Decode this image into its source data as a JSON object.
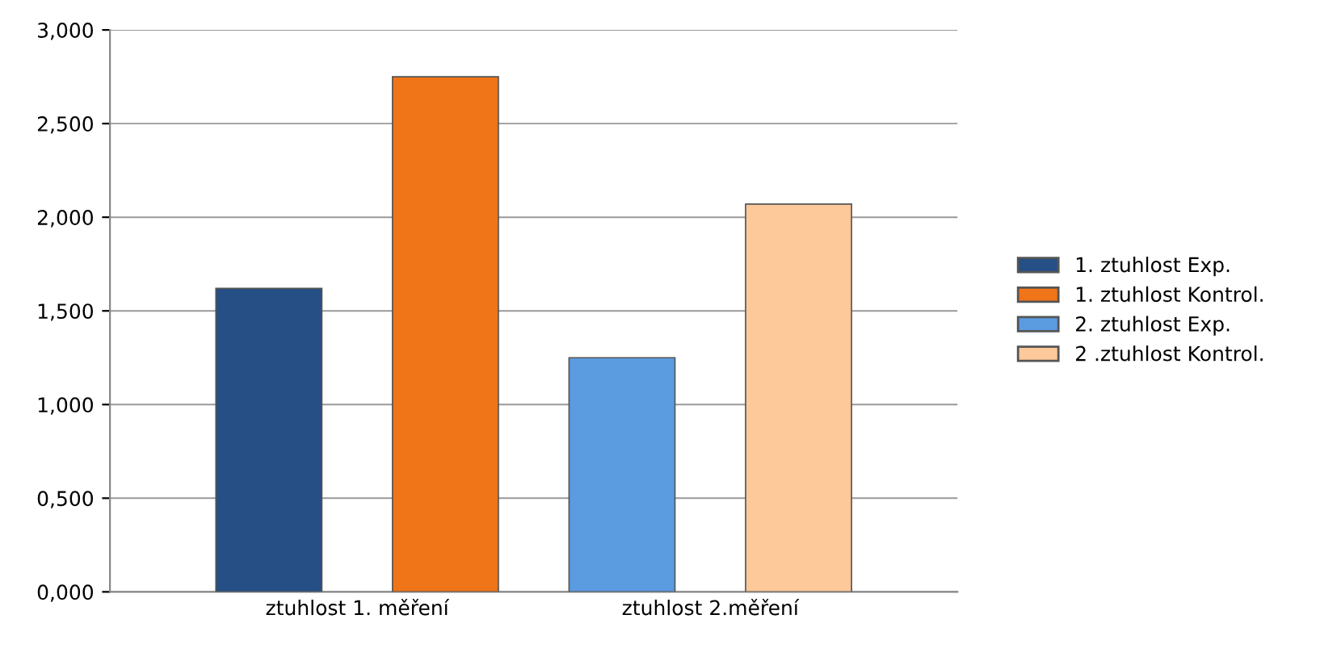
{
  "chart_data": {
    "type": "bar",
    "categories": [
      "ztuhlost 1. měření",
      "ztuhlost 2.měření"
    ],
    "series": [
      {
        "name": "1. ztuhlost Exp.",
        "color": "#254f85",
        "values": [
          1.62,
          null
        ]
      },
      {
        "name": "1. ztuhlost Kontrol.",
        "color": "#f07418",
        "values": [
          2.75,
          null
        ]
      },
      {
        "name": "2. ztuhlost Exp.",
        "color": "#5b9be0",
        "values": [
          null,
          1.25
        ]
      },
      {
        "name": "2 .ztuhlost Kontrol.",
        "color": "#fdc89a",
        "values": [
          null,
          2.07
        ]
      }
    ],
    "ylim": [
      0,
      3
    ],
    "yticks": [
      {
        "value": 0,
        "label": "0,000"
      },
      {
        "value": 0.5,
        "label": "0,500"
      },
      {
        "value": 1,
        "label": "1,000"
      },
      {
        "value": 1.5,
        "label": "1,500"
      },
      {
        "value": 2,
        "label": "2,000"
      },
      {
        "value": 2.5,
        "label": "2,500"
      },
      {
        "value": 3,
        "label": "3,000"
      }
    ],
    "grid": "y",
    "legend": "right"
  }
}
